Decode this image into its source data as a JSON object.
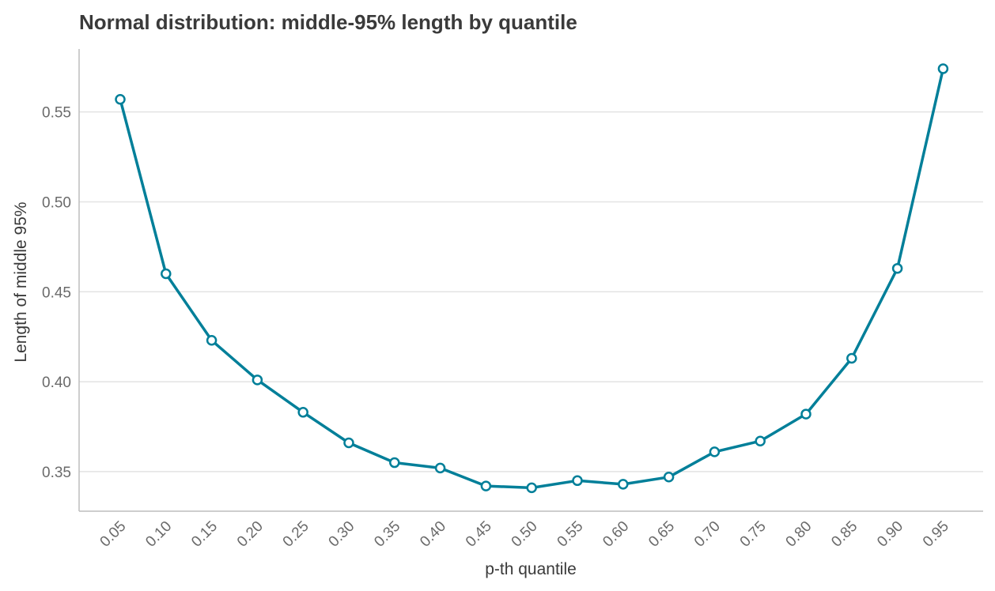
{
  "chart_data": {
    "type": "line",
    "title": "Normal distribution: middle-95% length by quantile",
    "xlabel": "p-th quantile",
    "ylabel": "Length of middle 95%",
    "x": [
      "0.05",
      "0.10",
      "0.15",
      "0.20",
      "0.25",
      "0.30",
      "0.35",
      "0.40",
      "0.45",
      "0.50",
      "0.55",
      "0.60",
      "0.65",
      "0.70",
      "0.75",
      "0.80",
      "0.85",
      "0.90",
      "0.95"
    ],
    "series": [
      {
        "values": [
          0.557,
          0.46,
          0.423,
          0.401,
          0.383,
          0.366,
          0.355,
          0.352,
          0.342,
          0.341,
          0.345,
          0.343,
          0.347,
          0.361,
          0.367,
          0.382,
          0.413,
          0.463,
          0.574
        ],
        "color": "#007f99"
      }
    ],
    "yticks": [
      "0.35",
      "0.40",
      "0.45",
      "0.50",
      "0.55"
    ],
    "ylim": [
      0.328,
      0.585
    ],
    "grid": "horizontal",
    "legend": "none"
  }
}
